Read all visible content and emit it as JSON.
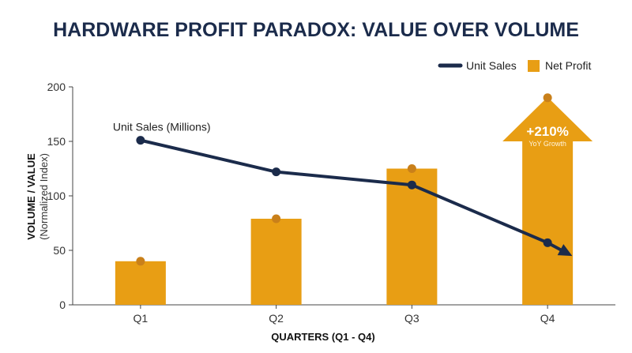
{
  "chart_data": {
    "type": "bar",
    "title": "HARDWARE PROFIT PARADOX: VALUE OVER VOLUME",
    "categories": [
      "Q1",
      "Q2",
      "Q3",
      "Q4"
    ],
    "series": [
      {
        "name": "Net Profit",
        "kind": "bar",
        "values": [
          40,
          79,
          125,
          190
        ],
        "color": "#e89e14"
      },
      {
        "name": "Unit Sales",
        "kind": "line",
        "values": [
          151,
          122,
          110,
          57
        ],
        "color": "#1b2b4b"
      }
    ],
    "xlabel": "QUARTERS (Q1 - Q4)",
    "ylabel": "VOLUME / VALUE",
    "ylabel_sub": "(Normalized Index)",
    "ylim": [
      0,
      200
    ],
    "yticks": [
      0,
      50,
      100,
      150,
      200
    ],
    "legend": {
      "position": "top-right",
      "items": [
        "Unit Sales",
        "Net Profit"
      ]
    },
    "annotations": {
      "line_label": "Unit Sales (Millions)",
      "growth_value": "+210%",
      "growth_label": "YoY Growth"
    },
    "colors": {
      "bar": "#e89e14",
      "bar_marker": "#c9801a",
      "line": "#1b2b4b",
      "title": "#1b2b4b"
    },
    "grid": false
  }
}
